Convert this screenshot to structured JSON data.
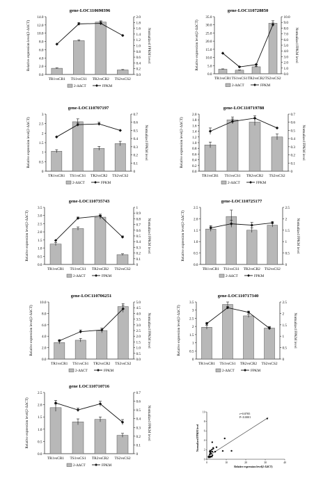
{
  "figure": {
    "colors": {
      "bar_fill": "#b8b8b8",
      "bar_stroke": "#555555",
      "line": "#111111",
      "axis": "#222222"
    }
  },
  "chart_data": [
    {
      "type": "bar",
      "title": "gene-LOC110690396",
      "categories": [
        "TR1vsCR1",
        "TS1vsCS1",
        "TR2vsCR2",
        "TS2vsCS2"
      ],
      "ylabel": "Relative expression level(2-ΔΔCT)",
      "y2label": "Normalized FPKM level",
      "ylim": [
        0,
        14
      ],
      "yticks": [
        "0.0",
        "2.0",
        "4.0",
        "6.0",
        "8.0",
        "10.0",
        "12.0",
        "14.0"
      ],
      "y2lim": [
        0,
        2.0
      ],
      "y2ticks": [
        "0.0",
        "0.2",
        "0.4",
        "0.6",
        "0.8",
        "1.0",
        "1.2",
        "1.4",
        "1.6",
        "1.8",
        "2.0"
      ],
      "series": [
        {
          "name": "2-ΔΔCT",
          "type": "bar",
          "values": [
            1.5,
            8.2,
            12.7,
            1.1
          ],
          "errors": [
            0.1,
            0.2,
            0.3,
            0.1
          ]
        },
        {
          "name": "FPKM",
          "type": "line",
          "values": [
            1.05,
            1.75,
            1.77,
            1.35
          ],
          "errors": [
            0,
            0.05,
            0.06,
            0
          ]
        }
      ],
      "legend": [
        "2-ΔΔCT",
        "FPKM"
      ]
    },
    {
      "type": "bar",
      "title": "gene-LOC110728850",
      "categories": [
        "TR1vsCR1",
        "TS1vsCS1",
        "TR2vsCR2",
        "TS2vsCS2"
      ],
      "ylabel": "Relative expression level(2-ΔΔCT)",
      "y2label": "Normalized FPKM level",
      "ylim": [
        0,
        35
      ],
      "yticks": [
        "0.0",
        "5.0",
        "10.0",
        "15.0",
        "20.0",
        "25.0",
        "30.0",
        "35.0"
      ],
      "y2lim": [
        0,
        10.0
      ],
      "y2ticks": [
        "0.0",
        "1.0",
        "2.0",
        "3.0",
        "4.0",
        "5.0",
        "6.0",
        "7.0",
        "8.0",
        "9.0",
        "10.0"
      ],
      "series": [
        {
          "name": "2-ΔΔCT",
          "type": "bar",
          "values": [
            2.8,
            2.2,
            4.3,
            31.0
          ],
          "errors": [
            0.2,
            0.2,
            0.3,
            1.5
          ]
        },
        {
          "name": "FPKM",
          "type": "line",
          "values": [
            3.6,
            1.2,
            1.6,
            8.6
          ],
          "errors": [
            0,
            0.1,
            0.1,
            0.3
          ]
        }
      ],
      "legend": [
        "2-ΔΔCT",
        "FPKM"
      ]
    },
    {
      "type": "bar",
      "title": "gene-LOC110707197",
      "categories": [
        "TR1vsCR1",
        "TS1vsCS1",
        "TR2vsCR2",
        "TS2vsCS2"
      ],
      "ylabel": "Relative expression level(2-ΔΔCT)",
      "y2label": "Normalized FPKM level",
      "ylim": [
        0,
        3.0
      ],
      "yticks": [
        "0",
        "0.5",
        "1",
        "1.5",
        "2",
        "2.5",
        "3"
      ],
      "y2lim": [
        0,
        0.7
      ],
      "y2ticks": [
        "0",
        "0.1",
        "0.2",
        "0.3",
        "0.4",
        "0.5",
        "0.6",
        "0.7"
      ],
      "series": [
        {
          "name": "2-ΔΔCT",
          "type": "bar",
          "values": [
            1.05,
            2.6,
            1.2,
            1.45
          ],
          "errors": [
            0.08,
            0.15,
            0.1,
            0.12
          ]
        },
        {
          "name": "FPKM",
          "type": "line",
          "values": [
            0.42,
            0.57,
            0.58,
            0.5
          ],
          "errors": [
            0,
            0.02,
            0.02,
            0
          ]
        }
      ],
      "legend": [
        "2-ΔΔCT",
        "FPKM"
      ]
    },
    {
      "type": "bar",
      "title": "gene-LOC110719788",
      "categories": [
        "TR1vsCR1",
        "TS1vsCS1",
        "TR2vsCR2",
        "TS2vsCS2"
      ],
      "ylabel": "Relative expression level(2-ΔΔCT)",
      "y2label": "Normalized FPKM level",
      "ylim": [
        0,
        2.0
      ],
      "yticks": [
        "0.0",
        "0.2",
        "0.4",
        "0.6",
        "0.8",
        "1.0",
        "1.2",
        "1.4",
        "1.6",
        "1.8",
        "2.0"
      ],
      "y2lim": [
        0,
        0.7
      ],
      "y2ticks": [
        "0",
        "0.1",
        "0.2",
        "0.3",
        "0.4",
        "0.5",
        "0.6",
        "0.7"
      ],
      "series": [
        {
          "name": "2-ΔΔCT",
          "type": "bar",
          "values": [
            0.92,
            1.8,
            1.72,
            1.2
          ],
          "errors": [
            0.1,
            0.1,
            0.12,
            0.1
          ]
        },
        {
          "name": "FPKM",
          "type": "line",
          "values": [
            0.49,
            0.61,
            0.65,
            0.53
          ],
          "errors": [
            0.04,
            0.03,
            0.03,
            0
          ]
        }
      ],
      "legend": [
        "2-ΔΔCT",
        "FPKM"
      ]
    },
    {
      "type": "bar",
      "title": "gene-LOC110735743",
      "categories": [
        "TR1vsCR1",
        "TS1vsCS1",
        "TR2vsCR2",
        "TS2vsCS2"
      ],
      "ylabel": "Relative expression level(2-ΔΔCT)",
      "y2label": "Normalized FPKM level",
      "ylim": [
        0,
        3.5
      ],
      "yticks": [
        "0.0",
        "0.5",
        "1.0",
        "1.5",
        "2.0",
        "2.5",
        "3.0",
        "3.5"
      ],
      "y2lim": [
        0,
        1.0
      ],
      "y2ticks": [
        "0",
        "0.1",
        "0.2",
        "0.3",
        "0.4",
        "0.5",
        "0.6",
        "0.7",
        "0.8",
        "0.9",
        "1"
      ],
      "series": [
        {
          "name": "2-ΔΔCT",
          "type": "bar",
          "values": [
            1.25,
            2.2,
            2.9,
            0.6
          ],
          "errors": [
            0.1,
            0.1,
            0.12,
            0.05
          ]
        },
        {
          "name": "FPKM",
          "type": "line",
          "values": [
            0.42,
            0.81,
            0.85,
            0.48
          ],
          "errors": [
            0,
            0.02,
            0.03,
            0.02
          ]
        }
      ],
      "legend": [
        "2-ΔΔCT",
        "FPKM"
      ]
    },
    {
      "type": "bar",
      "title": "gene-LOC110725177",
      "categories": [
        "TR1vsCR1",
        "TS1vsCS1",
        "TR2vsCR2",
        "TS2vsCS2"
      ],
      "ylabel": "Relative expression level(2-ΔΔCT)",
      "y2label": "Normalized FPKM level",
      "ylim": [
        0,
        2.5
      ],
      "yticks": [
        "0.0",
        "0.5",
        "1.0",
        "1.5",
        "2.0",
        "2.5"
      ],
      "y2lim": [
        0,
        2.5
      ],
      "y2ticks": [
        "0",
        "0.5",
        "1",
        "1.5",
        "2",
        "2.5"
      ],
      "series": [
        {
          "name": "2-ΔΔCT",
          "type": "bar",
          "values": [
            1.55,
            2.1,
            1.5,
            1.72
          ],
          "errors": [
            0.1,
            0.28,
            0.1,
            0.08
          ]
        },
        {
          "name": "FPKM",
          "type": "line",
          "values": [
            1.6,
            1.78,
            1.72,
            1.82
          ],
          "errors": [
            0.1,
            0.15,
            0.12,
            0.06
          ]
        }
      ],
      "legend": [
        "2-ΔΔCT",
        "FPKM"
      ]
    },
    {
      "type": "bar",
      "title": "gene-LOC110706251",
      "categories": [
        "TR1vsCR1",
        "TS1vsCS1",
        "TR2vsCR2",
        "TS2vsCS2"
      ],
      "ylabel": "Relative expression level(2-ΔΔCT)",
      "y2label": "Normalized FPKM level",
      "ylim": [
        0,
        10.0
      ],
      "yticks": [
        "0.0",
        "2.0",
        "4.0",
        "6.0",
        "8.0",
        "10.0"
      ],
      "y2lim": [
        0,
        5.0
      ],
      "y2ticks": [
        "0.0",
        "0.5",
        "1.0",
        "1.5",
        "2.0",
        "2.5",
        "3.0",
        "3.5",
        "4.0",
        "4.5",
        "5.0"
      ],
      "series": [
        {
          "name": "2-ΔΔCT",
          "type": "bar",
          "values": [
            2.9,
            3.3,
            5.0,
            9.2
          ],
          "errors": [
            0.25,
            0.3,
            0.4,
            0.5
          ]
        },
        {
          "name": "FPKM",
          "type": "line",
          "values": [
            1.6,
            2.4,
            2.55,
            4.4
          ],
          "errors": [
            0.1,
            0.15,
            0.15,
            0.3
          ]
        }
      ],
      "legend": [
        "2-ΔΔCT",
        "FPKM"
      ]
    },
    {
      "type": "bar",
      "title": "gene-LOC110717340",
      "categories": [
        "TR1vsCR1",
        "TS1vsCS1",
        "TR2vsCR2",
        "TS2vsCS2"
      ],
      "ylabel": "Relative expression level(2-ΔΔCT)",
      "y2label": "Normalized FPKM level",
      "ylim": [
        0,
        3.5
      ],
      "yticks": [
        "0",
        "0.5",
        "1",
        "1.5",
        "2",
        "2.5",
        "3",
        "3.5"
      ],
      "y2lim": [
        0,
        2.5
      ],
      "y2ticks": [
        "0",
        "0.5",
        "1",
        "1.5",
        "2",
        "2.5"
      ],
      "series": [
        {
          "name": "2-ΔΔCT",
          "type": "bar",
          "values": [
            1.95,
            3.35,
            2.65,
            1.9
          ],
          "errors": [
            0.12,
            0.15,
            0.1,
            0.1
          ]
        },
        {
          "name": "FPKM",
          "type": "line",
          "values": [
            1.55,
            2.25,
            2.05,
            1.35
          ],
          "errors": [
            0.06,
            0.05,
            0.05,
            0.05
          ]
        }
      ],
      "legend": [
        "2-ΔΔCT",
        "FPKM"
      ]
    },
    {
      "type": "bar",
      "title": "gene LOC110710716",
      "categories": [
        "TR1vsCR1",
        "TS1vsCS1",
        "TR2vsCR2",
        "TS2vsCS2"
      ],
      "ylabel": "Relative expression level(2-ΔΔCT)",
      "y2label": "Normalized FPKM level",
      "ylim": [
        0,
        2.5
      ],
      "yticks": [
        "0.0",
        "0.5",
        "1.0",
        "1.5",
        "2.0",
        "2.5"
      ],
      "y2lim": [
        0,
        0.7
      ],
      "y2ticks": [
        "0",
        "0.1",
        "0.2",
        "0.3",
        "0.4",
        "0.5",
        "0.6",
        "0.7"
      ],
      "series": [
        {
          "name": "2-ΔΔCT",
          "type": "bar",
          "values": [
            1.88,
            1.3,
            1.4,
            0.75
          ],
          "errors": [
            0.15,
            0.12,
            0.1,
            0.08
          ]
        },
        {
          "name": "FPKM",
          "type": "line",
          "values": [
            0.58,
            0.5,
            0.57,
            0.36
          ],
          "errors": [
            0.03,
            0.02,
            0.03,
            0.03
          ]
        }
      ],
      "legend": [
        "2-ΔΔCT",
        "FPKM"
      ]
    },
    {
      "type": "scatter",
      "annotations": [
        "r=0.8785",
        "P<0.0001"
      ],
      "xlabel": "Relative expression level(2-ΔΔCT)",
      "ylabel": "Normalized FPKM level",
      "xlim": [
        0,
        40
      ],
      "xticks": [
        "0",
        "10",
        "20",
        "30",
        "40"
      ],
      "ylim": [
        0,
        10
      ],
      "yticks": [
        "0",
        "2",
        "4",
        "6",
        "8",
        "10"
      ],
      "points": [
        [
          0.9,
          0.5
        ],
        [
          1.0,
          0.4
        ],
        [
          1.05,
          0.6
        ],
        [
          1.2,
          0.5
        ],
        [
          1.3,
          0.5
        ],
        [
          1.4,
          0.57
        ],
        [
          1.5,
          1.05
        ],
        [
          1.55,
          1.6
        ],
        [
          1.6,
          0.42
        ],
        [
          1.7,
          1.8
        ],
        [
          1.72,
          0.6
        ],
        [
          1.8,
          0.5
        ],
        [
          1.9,
          1.35
        ],
        [
          1.95,
          1.55
        ],
        [
          2.1,
          1.78
        ],
        [
          2.2,
          0.57
        ],
        [
          2.2,
          1.2
        ],
        [
          2.6,
          0.57
        ],
        [
          2.65,
          2.05
        ],
        [
          2.8,
          3.6
        ],
        [
          2.9,
          0.85
        ],
        [
          2.9,
          1.6
        ],
        [
          3.3,
          2.4
        ],
        [
          3.35,
          2.25
        ],
        [
          4.3,
          1.6
        ],
        [
          5.0,
          2.55
        ],
        [
          8.2,
          1.75
        ],
        [
          9.2,
          4.4
        ],
        [
          12.7,
          1.77
        ],
        [
          31.0,
          8.6
        ]
      ]
    }
  ]
}
